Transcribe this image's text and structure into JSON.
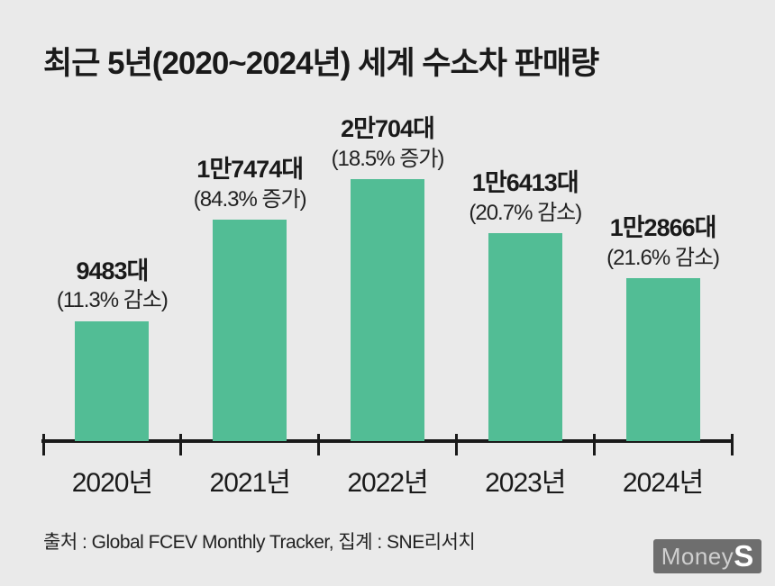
{
  "title": "최근 5년(2020~2024년) 세계 수소차 판매량",
  "source": "출처 : Global FCEV Monthly Tracker, 집계 : SNE리서치",
  "logo": {
    "money": "Money",
    "s": "S"
  },
  "colors": {
    "background": "#eaeaea",
    "bar": "#52bd95",
    "axis": "#1a1a1a",
    "text": "#1a1a1a",
    "logo_background": "#6e6e6e"
  },
  "chart_data": {
    "type": "bar",
    "title": "최근 5년(2020~2024년) 세계 수소차 판매량",
    "categories": [
      "2020년",
      "2021년",
      "2022년",
      "2023년",
      "2024년"
    ],
    "values": [
      9483,
      17474,
      20704,
      16413,
      12866
    ],
    "value_labels": [
      "9483대",
      "1만7474대",
      "2만704대",
      "1만6413대",
      "1만2866대"
    ],
    "change_labels": [
      "(11.3% 감소)",
      "(84.3% 증가)",
      "(18.5% 증가)",
      "(20.7% 감소)",
      "(21.6% 감소)"
    ],
    "xlabel": "",
    "ylabel": "",
    "ylim": [
      0,
      20704
    ],
    "grid": false,
    "legend": false,
    "bar_color": "#52bd95",
    "unit": "대 (vehicles)"
  }
}
